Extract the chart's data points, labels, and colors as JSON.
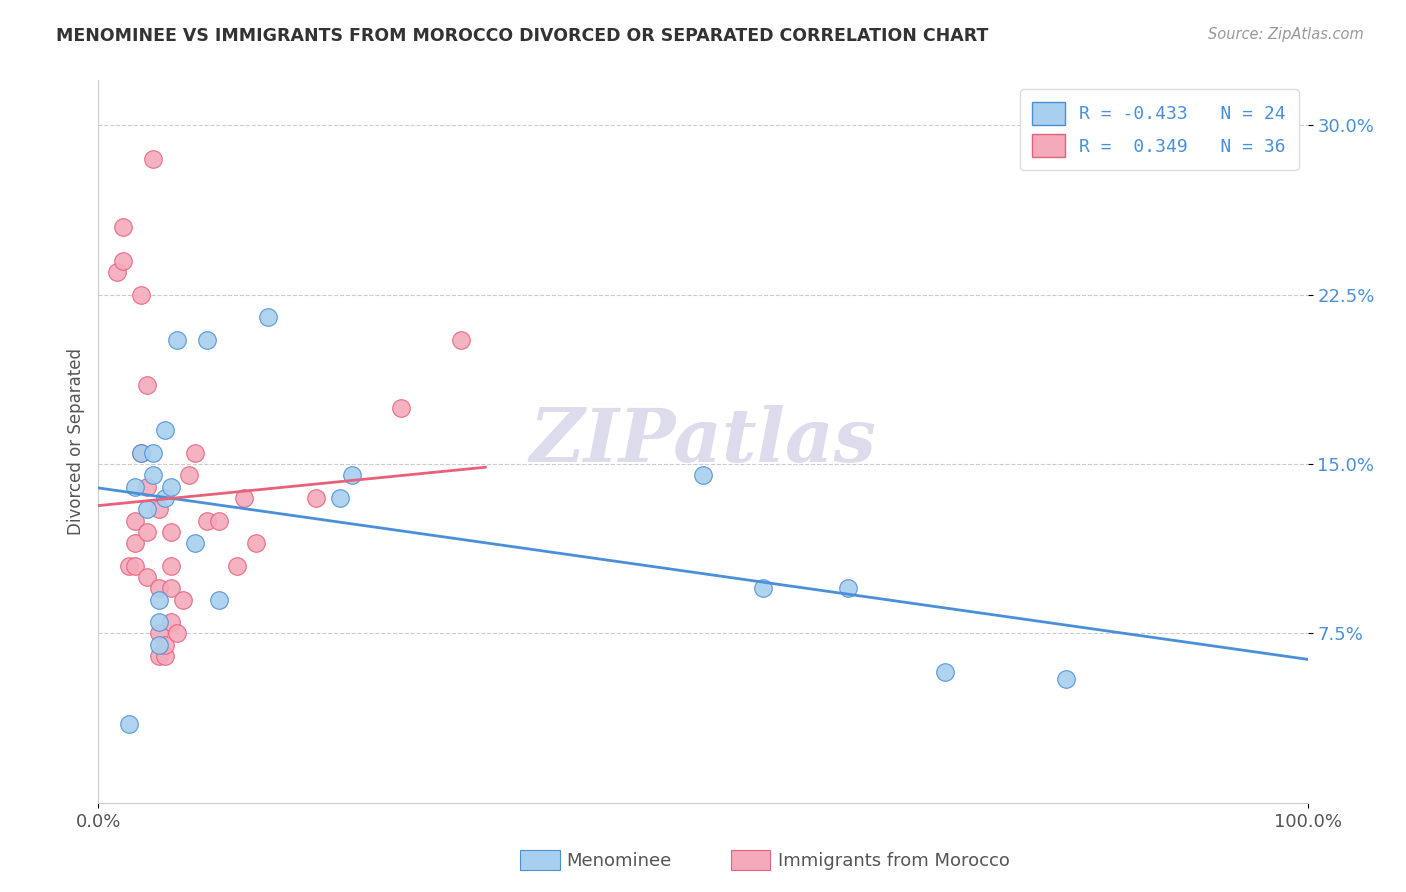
{
  "title": "MENOMINEE VS IMMIGRANTS FROM MOROCCO DIVORCED OR SEPARATED CORRELATION CHART",
  "source_text": "Source: ZipAtlas.com",
  "ylabel": "Divorced or Separated",
  "xlim": [
    0.0,
    1.0
  ],
  "ylim": [
    0.0,
    0.32
  ],
  "yticks": [
    0.075,
    0.15,
    0.225,
    0.3
  ],
  "ytick_labels": [
    "7.5%",
    "15.0%",
    "22.5%",
    "30.0%"
  ],
  "xticks": [
    0.0,
    1.0
  ],
  "xtick_labels": [
    "0.0%",
    "100.0%"
  ],
  "menominee_R": -0.433,
  "menominee_N": 24,
  "morocco_R": 0.349,
  "morocco_N": 36,
  "menominee_color": "#A8CFEE",
  "morocco_color": "#F4AABB",
  "menominee_line_color": "#4A90D9",
  "morocco_line_color": "#E8607A",
  "background_color": "#FFFFFF",
  "watermark": "ZIPatlas",
  "menominee_x": [
    0.025,
    0.03,
    0.035,
    0.04,
    0.045,
    0.045,
    0.05,
    0.05,
    0.05,
    0.055,
    0.055,
    0.06,
    0.065,
    0.08,
    0.09,
    0.1,
    0.14,
    0.2,
    0.21,
    0.5,
    0.55,
    0.62,
    0.7,
    0.8
  ],
  "menominee_y": [
    0.035,
    0.14,
    0.155,
    0.13,
    0.145,
    0.155,
    0.07,
    0.08,
    0.09,
    0.135,
    0.165,
    0.14,
    0.205,
    0.115,
    0.205,
    0.09,
    0.215,
    0.135,
    0.145,
    0.145,
    0.095,
    0.095,
    0.058,
    0.055
  ],
  "morocco_x": [
    0.015,
    0.02,
    0.02,
    0.025,
    0.03,
    0.03,
    0.03,
    0.035,
    0.035,
    0.04,
    0.04,
    0.04,
    0.04,
    0.045,
    0.05,
    0.05,
    0.05,
    0.05,
    0.055,
    0.055,
    0.06,
    0.06,
    0.06,
    0.06,
    0.065,
    0.07,
    0.075,
    0.08,
    0.09,
    0.1,
    0.115,
    0.12,
    0.13,
    0.18,
    0.25,
    0.3
  ],
  "morocco_y": [
    0.235,
    0.24,
    0.255,
    0.105,
    0.105,
    0.115,
    0.125,
    0.155,
    0.225,
    0.1,
    0.12,
    0.14,
    0.185,
    0.285,
    0.065,
    0.075,
    0.095,
    0.13,
    0.065,
    0.07,
    0.08,
    0.095,
    0.105,
    0.12,
    0.075,
    0.09,
    0.145,
    0.155,
    0.125,
    0.125,
    0.105,
    0.135,
    0.115,
    0.135,
    0.175,
    0.205
  ],
  "legend_label_men": "R = -0.433   N = 24",
  "legend_label_mor": "R =  0.349   N = 36",
  "bottom_label_men": "Menominee",
  "bottom_label_mor": "Immigrants from Morocco"
}
